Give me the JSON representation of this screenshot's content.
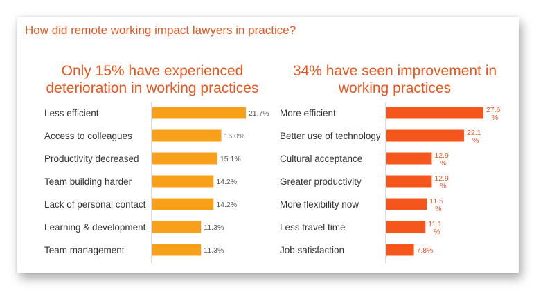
{
  "title": "How did remote working impact lawyers in practice?",
  "colors": {
    "title": "#E8561E",
    "left_bar": "#F9A01B",
    "right_bar": "#F4561C",
    "right_label": "#E8561E",
    "left_label": "#555555"
  },
  "chart_data": [
    {
      "type": "bar",
      "orientation": "horizontal",
      "title": "Only 15% have experienced deterioration in working practices",
      "categories": [
        "Less efficient",
        "Access to colleagues",
        "Productivity decreased",
        "Team building harder",
        "Lack of personal contact",
        "Learning & development",
        "Team management"
      ],
      "values": [
        21.7,
        16.0,
        15.1,
        14.2,
        14.2,
        11.3,
        11.3
      ],
      "data_labels": [
        "21.7%",
        "16.0%",
        "15.1%",
        "14.2%",
        "14.2%",
        "11.3%",
        "11.3%"
      ],
      "unit": "%",
      "grid": false
    },
    {
      "type": "bar",
      "orientation": "horizontal",
      "title": "34% have seen improvement in working practices",
      "categories": [
        "More efficient",
        "Better use of technology",
        "Cultural acceptance",
        "Greater productivity",
        "More flexibility now",
        "Less travel time",
        "Job satisfaction"
      ],
      "values": [
        27.6,
        22.1,
        12.9,
        12.9,
        11.5,
        11.1,
        7.8
      ],
      "data_labels": [
        "27.6%",
        "22.1%",
        "12.9%",
        "12.9%",
        "11.5%",
        "11.1%",
        "7.8%"
      ],
      "unit": "%",
      "grid": false
    }
  ]
}
